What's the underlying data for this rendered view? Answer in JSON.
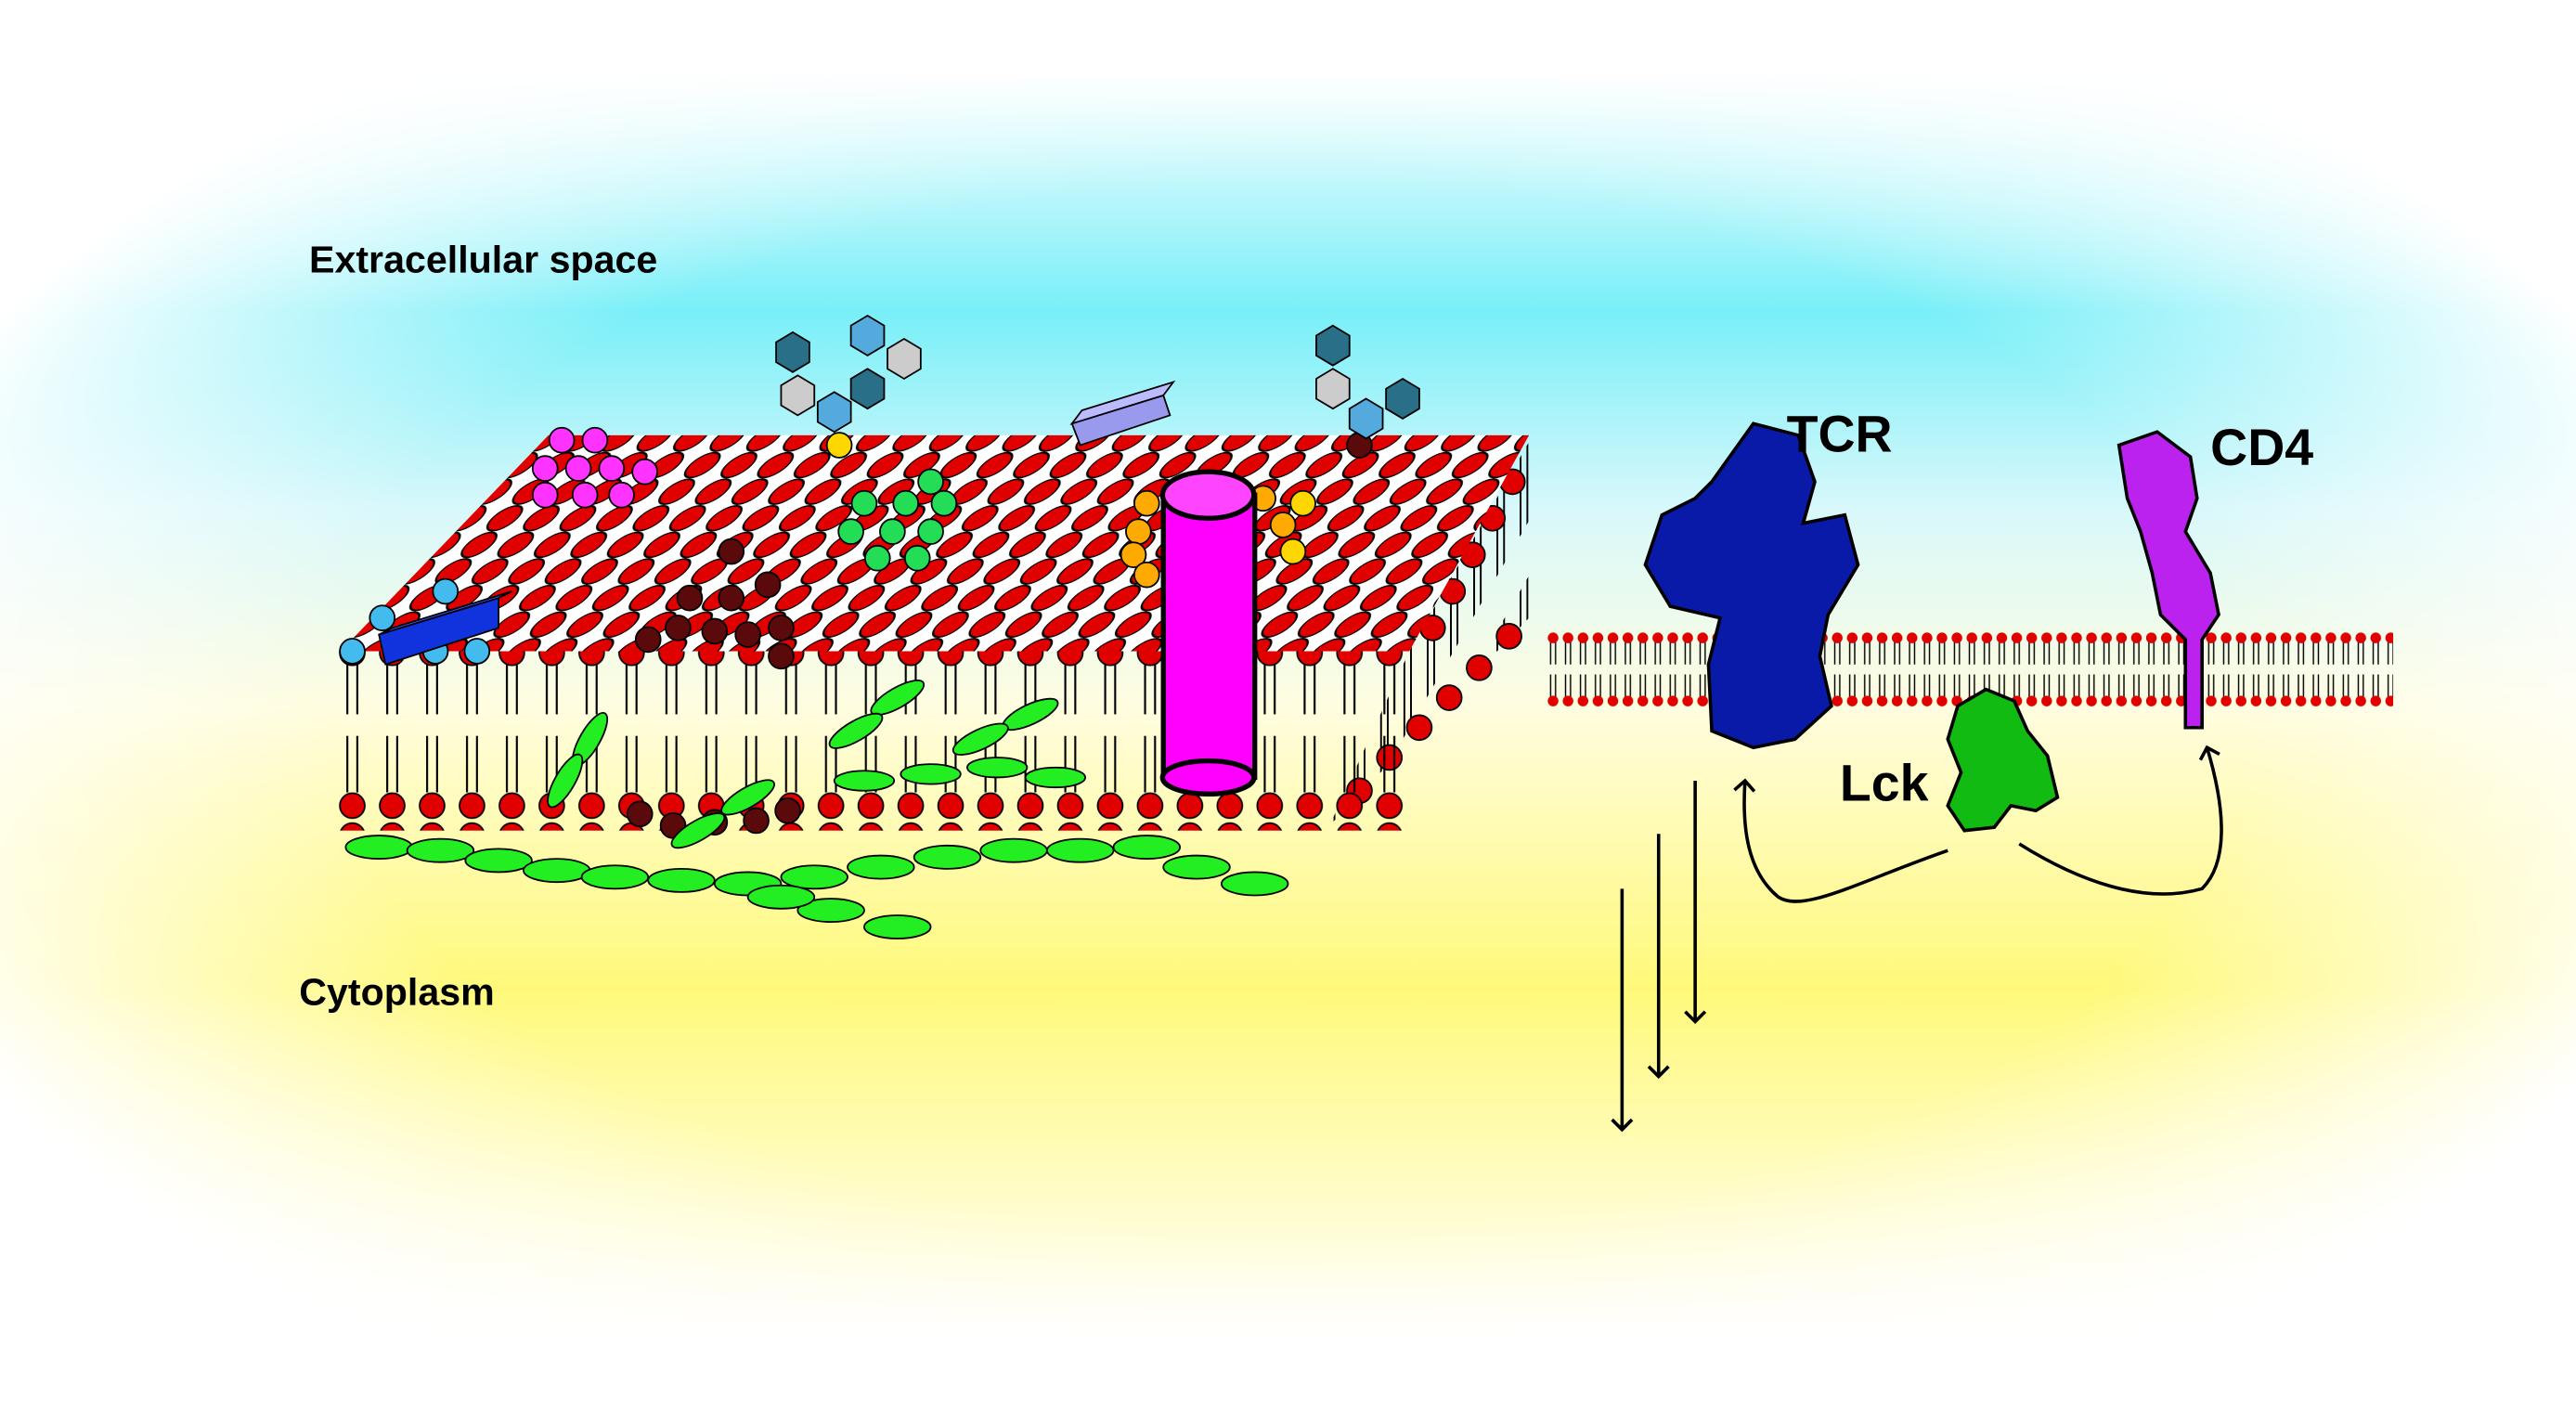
{
  "labels": {
    "extracellular": "Extracellular space",
    "cytoplasm": "Cytoplasm"
  },
  "proteins": {
    "tcr": "TCR",
    "cd4": "CD4",
    "lck": "Lck"
  }
}
